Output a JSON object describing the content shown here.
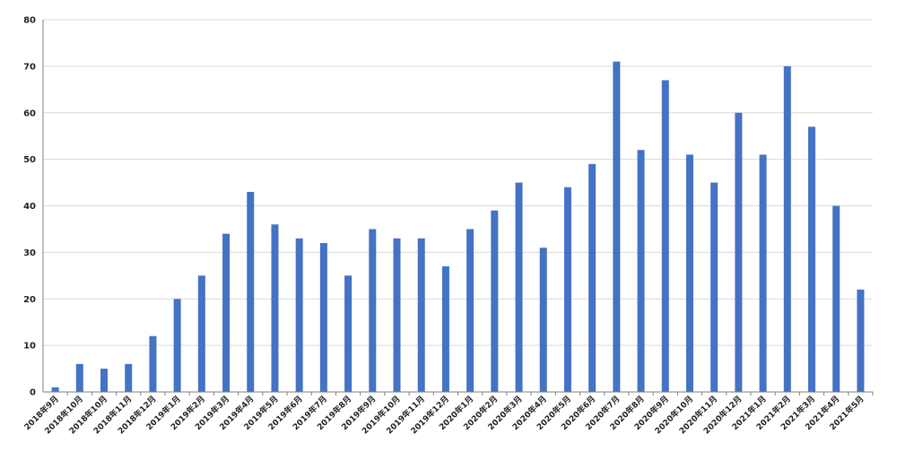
{
  "chart_data": {
    "type": "bar",
    "title": "",
    "xlabel": "",
    "ylabel": "",
    "ylim": [
      0,
      80
    ],
    "yticks": [
      0,
      10,
      20,
      30,
      40,
      50,
      60,
      70,
      80
    ],
    "grid": true,
    "legend": "none",
    "bar_color": "#4472C4",
    "categories": [
      "2018年9月",
      "2018年10月",
      "2018年10月",
      "2018年11月",
      "2018年12月",
      "2019年1月",
      "2019年2月",
      "2019年3月",
      "2019年4月",
      "2019年5月",
      "2019年6月",
      "2019年7月",
      "2019年8月",
      "2019年9月",
      "2019年10月",
      "2019年11月",
      "2019年12月",
      "2020年1月",
      "2020年2月",
      "2020年3月",
      "2020年4月",
      "2020年5月",
      "2020年6月",
      "2020年7月",
      "2020年8月",
      "2020年9月",
      "2020年10月",
      "2020年11月",
      "2020年12月",
      "2021年1月",
      "2021年2月",
      "2021年3月",
      "2021年4月",
      "2021年5月"
    ],
    "values": [
      1,
      6,
      5,
      6,
      12,
      20,
      25,
      34,
      43,
      36,
      33,
      32,
      25,
      35,
      33,
      33,
      27,
      35,
      39,
      45,
      31,
      44,
      49,
      71,
      52,
      67,
      51,
      45,
      60,
      51,
      70,
      57,
      40,
      22
    ]
  }
}
